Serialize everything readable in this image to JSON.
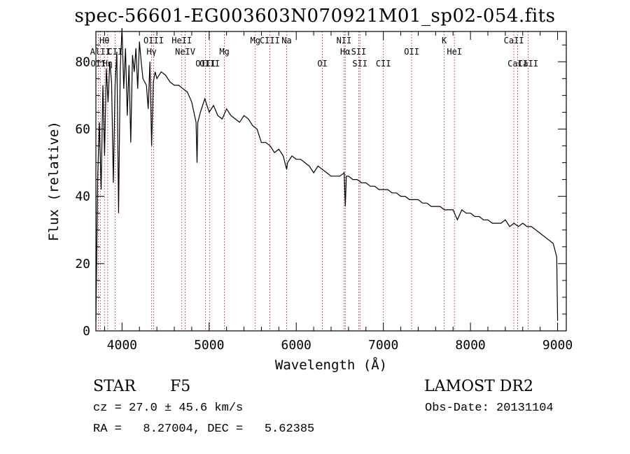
{
  "chart_data": {
    "type": "line",
    "title": "spec-56601-EG003603N070921M01_sp02-054.fits",
    "xlabel": "Wavelength (Å)",
    "ylabel": "Flux (relative)",
    "xlim": [
      3700,
      9100
    ],
    "ylim": [
      0,
      89
    ],
    "xticks": [
      "4000",
      "5000",
      "6000",
      "7000",
      "8000",
      "9000"
    ],
    "yticks": [
      "0",
      "20",
      "40",
      "60",
      "80"
    ],
    "grid": false,
    "series": [
      {
        "x": [
          3700,
          3720,
          3740,
          3760,
          3780,
          3800,
          3820,
          3840,
          3860,
          3880,
          3900,
          3920,
          3940,
          3960,
          3980,
          4000,
          4020,
          4040,
          4060,
          4080,
          4100,
          4120,
          4140,
          4160,
          4180,
          4200,
          4220,
          4240,
          4260,
          4280,
          4300,
          4320,
          4340,
          4360,
          4380,
          4400,
          4450,
          4500,
          4550,
          4600,
          4650,
          4700,
          4750,
          4800,
          4850,
          4861,
          4870,
          4900,
          4950,
          5000,
          5050,
          5100,
          5150,
          5200,
          5250,
          5300,
          5350,
          5400,
          5450,
          5500,
          5550,
          5600,
          5650,
          5700,
          5750,
          5800,
          5850,
          5890,
          5900,
          5950,
          6000,
          6050,
          6100,
          6150,
          6200,
          6250,
          6300,
          6350,
          6400,
          6450,
          6500,
          6550,
          6563,
          6575,
          6600,
          6650,
          6700,
          6750,
          6800,
          6850,
          6900,
          6950,
          7000,
          7050,
          7100,
          7150,
          7200,
          7250,
          7300,
          7350,
          7400,
          7450,
          7500,
          7550,
          7600,
          7650,
          7700,
          7750,
          7800,
          7850,
          7900,
          7950,
          8000,
          8050,
          8100,
          8150,
          8200,
          8250,
          8300,
          8350,
          8400,
          8450,
          8500,
          8550,
          8600,
          8650,
          8700,
          8750,
          8800,
          8850,
          8900,
          8950,
          8970,
          8990,
          9000
        ],
        "y": [
          3,
          45,
          62,
          42,
          73,
          52,
          78,
          68,
          80,
          74,
          44,
          73,
          83,
          35,
          78,
          90,
          72,
          84,
          64,
          79,
          56,
          82,
          77,
          84,
          72,
          86,
          80,
          75,
          74,
          73,
          66,
          80,
          55,
          74,
          77,
          75,
          77,
          76,
          74,
          73,
          73,
          72,
          71,
          68,
          62,
          50,
          62,
          65,
          69,
          65,
          67,
          64,
          63,
          66,
          64,
          63,
          62,
          64,
          63,
          61,
          60,
          56,
          56,
          55,
          53,
          54,
          52,
          48,
          50,
          52,
          51,
          51,
          50,
          49,
          47,
          49,
          48,
          47,
          46,
          46,
          46,
          47,
          37,
          46,
          46,
          45,
          45,
          44,
          44,
          43,
          43,
          42,
          42,
          42,
          41,
          41,
          40,
          40,
          39,
          39,
          39,
          38,
          38,
          37,
          37,
          37,
          36,
          36,
          36,
          33,
          36,
          35,
          35,
          34,
          34,
          33,
          33,
          32,
          32,
          32,
          33,
          31,
          32,
          31,
          32,
          31,
          31,
          30,
          29,
          28,
          27,
          26,
          24,
          22,
          3
        ]
      }
    ],
    "lines": [
      {
        "label": "Hθ",
        "wavelength": 3798,
        "row": "top"
      },
      {
        "label": "AlII",
        "wavelength": 3750,
        "row": "mid"
      },
      {
        "label": "OII",
        "wavelength": 3727,
        "row": "low"
      },
      {
        "label": "Hη",
        "wavelength": 3835,
        "row": "low"
      },
      {
        "label": "CII",
        "wavelength": 3920,
        "row": "mid"
      },
      {
        "label": "OIII",
        "wavelength": 4363,
        "row": "top"
      },
      {
        "label": "Hγ",
        "wavelength": 4340,
        "row": "mid"
      },
      {
        "label": "HeII",
        "wavelength": 4686,
        "row": "top"
      },
      {
        "label": "NeIV",
        "wavelength": 4725,
        "row": "mid"
      },
      {
        "label": "OIII",
        "wavelength": 4959,
        "row": "low"
      },
      {
        "label": "OIII",
        "wavelength": 5007,
        "row": "low"
      },
      {
        "label": "Mg",
        "wavelength": 5175,
        "row": "mid"
      },
      {
        "label": "Mg",
        "wavelength": 5530,
        "row": "top"
      },
      {
        "label": "CIII",
        "wavelength": 5696,
        "row": "top"
      },
      {
        "label": "Na",
        "wavelength": 5890,
        "row": "top"
      },
      {
        "label": "NII",
        "wavelength": 6548,
        "row": "top"
      },
      {
        "label": "OI",
        "wavelength": 6300,
        "row": "low"
      },
      {
        "label": "Hα",
        "wavelength": 6563,
        "row": "mid"
      },
      {
        "label": "SII",
        "wavelength": 6717,
        "row": "mid"
      },
      {
        "label": "SII",
        "wavelength": 6731,
        "row": "low"
      },
      {
        "label": "CII",
        "wavelength": 7000,
        "row": "low"
      },
      {
        "label": "OII",
        "wavelength": 7325,
        "row": "mid"
      },
      {
        "label": "K",
        "wavelength": 7699,
        "row": "top"
      },
      {
        "label": "HeI",
        "wavelength": 7816,
        "row": "mid"
      },
      {
        "label": "CaII",
        "wavelength": 8498,
        "row": "top"
      },
      {
        "label": "CaII",
        "wavelength": 8542,
        "row": "low"
      },
      {
        "label": "CaII",
        "wavelength": 8662,
        "row": "low"
      }
    ]
  },
  "info": {
    "object_class": "STAR",
    "subclass": "F5",
    "survey": "LAMOST DR2",
    "cz": "cz = 27.0 ± 45.6 km/s",
    "obs_date": "Obs-Date: 20131104",
    "coords": "RA =   8.27004, DEC =   5.62385"
  }
}
